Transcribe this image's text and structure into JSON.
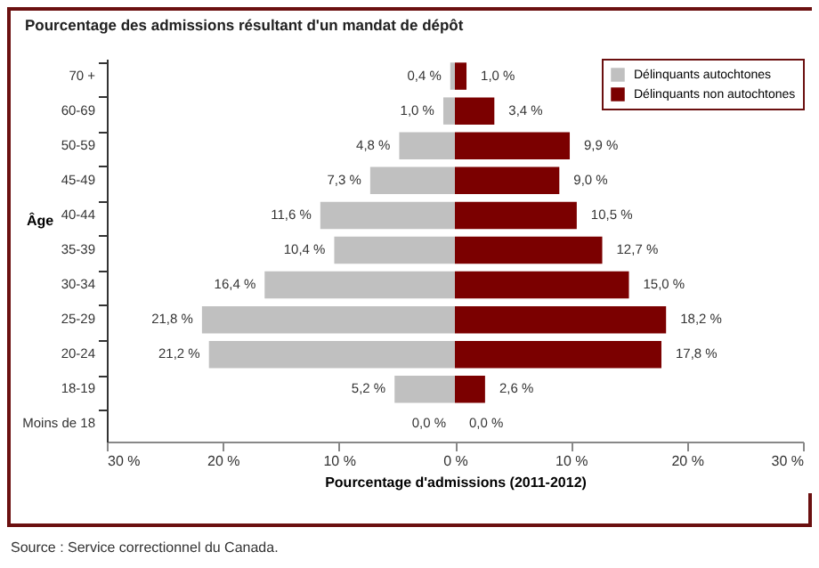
{
  "chart_data": {
    "type": "bar",
    "orientation": "horizontal",
    "title": "Pourcentage des admissions résultant d'un mandat de dépôt",
    "xlabel": "Pourcentage d'admissions (2011-2012)",
    "ylabel": "Âge",
    "categories": [
      "70 +",
      "60-69",
      "50-59",
      "45-49",
      "40-44",
      "35-39",
      "30-34",
      "25-29",
      "20-24",
      "18-19",
      "Moins de 18"
    ],
    "series": [
      {
        "name": "Délinquants autochtones",
        "color": "#c0c0c0",
        "values": [
          0.4,
          1.0,
          4.8,
          7.3,
          11.6,
          10.4,
          16.4,
          21.8,
          21.2,
          5.2,
          0.0
        ],
        "base": [
          -0.4,
          -1.0,
          -4.8,
          -7.3,
          -11.6,
          -10.4,
          -16.4,
          -21.8,
          -21.2,
          -5.2,
          null
        ],
        "value_labels": [
          "0,4 %",
          "1,0 %",
          "4,8 %",
          "7,3 %",
          "11,6 %",
          "10,4 %",
          "16,4 %",
          "21,8 %",
          "21,2 %",
          "5,2 %",
          "0,0 %"
        ]
      },
      {
        "name": "Délinquants non autochtones",
        "color": "#7b0000",
        "values": [
          1.0,
          3.4,
          9.9,
          9.0,
          10.5,
          12.7,
          15.0,
          18.2,
          17.8,
          2.6,
          0.0
        ],
        "value_labels": [
          "1,0 %",
          "3,4 %",
          "9,9 %",
          "9,0 %",
          "10,5 %",
          "12,7 %",
          "15,0 %",
          "18,2 %",
          "17,8 %",
          "2,6 %",
          "0,0 %"
        ]
      }
    ],
    "xlim": [
      -30,
      30
    ],
    "xticks": [
      {
        "value": -30,
        "label": "30 %"
      },
      {
        "value": -20,
        "label": "20 %"
      },
      {
        "value": -10,
        "label": "10 %"
      },
      {
        "value": 0,
        "label": "0 %"
      },
      {
        "value": 10,
        "label": "10 %"
      },
      {
        "value": 20,
        "label": "20 %"
      },
      {
        "value": 30,
        "label": "30 %"
      }
    ],
    "grid": false,
    "legend": "top right",
    "annotations": [
      "Source : Service correctionnel du Canada."
    ]
  }
}
